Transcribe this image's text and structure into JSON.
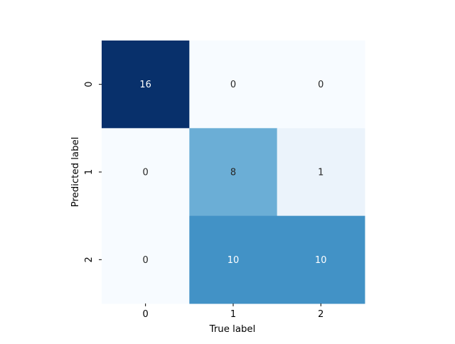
{
  "chart_data": {
    "type": "heatmap",
    "title": "",
    "xlabel": "True label",
    "ylabel": "Predicted label",
    "x_categories": [
      "0",
      "1",
      "2"
    ],
    "y_categories": [
      "0",
      "1",
      "2"
    ],
    "values": [
      [
        16,
        0,
        0
      ],
      [
        0,
        8,
        1
      ],
      [
        0,
        10,
        10
      ]
    ],
    "color_scale": "Blues",
    "color_range": [
      0,
      16
    ],
    "colorbar": false,
    "annotations": true,
    "grid": false
  },
  "colors": {
    "low": "#f7fbff",
    "high": "#08306b",
    "text_dark": "#262626",
    "text_light": "#ffffff",
    "axis_text": "#000000"
  }
}
